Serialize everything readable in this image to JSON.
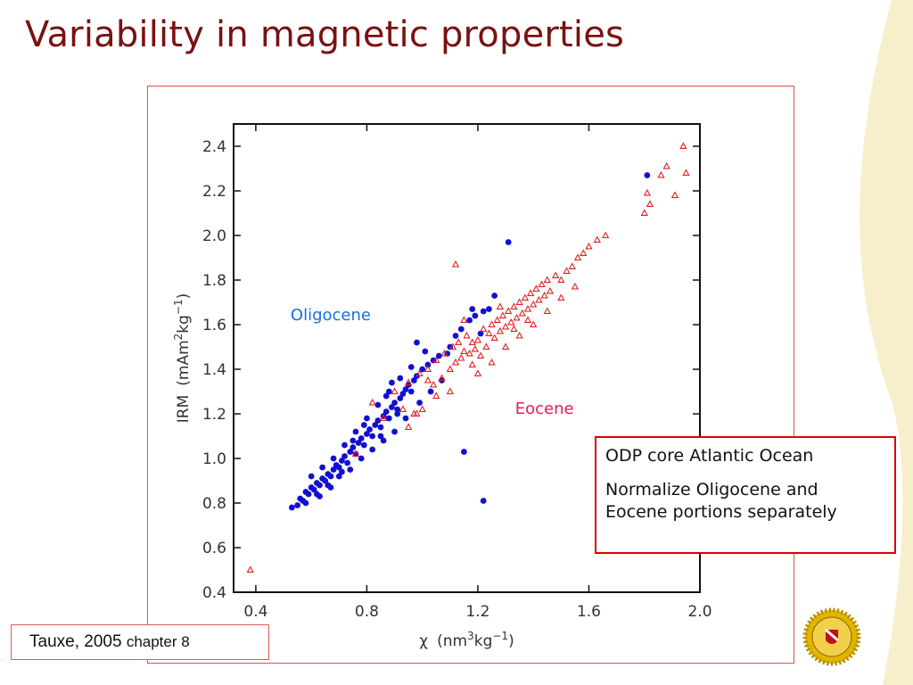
{
  "slide": {
    "title": "Variability in magnetic properties",
    "notes": [
      "ODP core Atlantic Ocean",
      "Normalize Oligocene and Eocene portions separately"
    ],
    "citation": {
      "main": "Tauxe, 2005",
      "detail": "chapter 8"
    },
    "logo": "university-seal-icon",
    "colors": {
      "title": "#7a1111",
      "background_band": "#f7efcc",
      "box_border": "#e00000"
    }
  },
  "chart_data": {
    "type": "scatter",
    "title": "",
    "xlabel_parts": [
      "χ",
      "(nm",
      "3",
      "kg",
      "−1",
      ")"
    ],
    "ylabel_parts": [
      "IRM",
      "(mAm",
      "2",
      "kg",
      "−1",
      ")"
    ],
    "xlim": [
      0.32,
      2.0
    ],
    "ylim": [
      0.4,
      2.5
    ],
    "xticks": [
      "0.4",
      "0.8",
      "1.2",
      "1.6",
      "2.0"
    ],
    "yticks": [
      "0.4",
      "0.6",
      "0.8",
      "1.0",
      "1.2",
      "1.4",
      "1.6",
      "1.8",
      "2.0",
      "2.2",
      "2.4"
    ],
    "grid": false,
    "series": [
      {
        "name": "Oligocene",
        "color": "#1010d0",
        "marker": "circle",
        "points": [
          [
            0.53,
            0.78
          ],
          [
            0.55,
            0.79
          ],
          [
            0.56,
            0.82
          ],
          [
            0.57,
            0.81
          ],
          [
            0.58,
            0.85
          ],
          [
            0.59,
            0.84
          ],
          [
            0.6,
            0.87
          ],
          [
            0.61,
            0.86
          ],
          [
            0.62,
            0.89
          ],
          [
            0.63,
            0.88
          ],
          [
            0.64,
            0.91
          ],
          [
            0.65,
            0.9
          ],
          [
            0.66,
            0.93
          ],
          [
            0.67,
            0.92
          ],
          [
            0.68,
            0.95
          ],
          [
            0.69,
            0.97
          ],
          [
            0.7,
            0.96
          ],
          [
            0.71,
            0.99
          ],
          [
            0.72,
            1.01
          ],
          [
            0.73,
            0.98
          ],
          [
            0.74,
            1.03
          ],
          [
            0.75,
            1.05
          ],
          [
            0.76,
            1.02
          ],
          [
            0.77,
            1.07
          ],
          [
            0.78,
            1.09
          ],
          [
            0.79,
            1.06
          ],
          [
            0.8,
            1.11
          ],
          [
            0.81,
            1.13
          ],
          [
            0.82,
            1.1
          ],
          [
            0.83,
            1.15
          ],
          [
            0.84,
            1.17
          ],
          [
            0.85,
            1.14
          ],
          [
            0.86,
            1.19
          ],
          [
            0.87,
            1.21
          ],
          [
            0.88,
            1.18
          ],
          [
            0.89,
            1.23
          ],
          [
            0.9,
            1.25
          ],
          [
            0.91,
            1.22
          ],
          [
            0.92,
            1.27
          ],
          [
            0.93,
            1.29
          ],
          [
            0.94,
            1.31
          ],
          [
            0.95,
            1.33
          ],
          [
            0.96,
            1.3
          ],
          [
            0.97,
            1.35
          ],
          [
            0.98,
            1.37
          ],
          [
            1.0,
            1.4
          ],
          [
            1.02,
            1.42
          ],
          [
            1.04,
            1.44
          ],
          [
            1.06,
            1.46
          ],
          [
            0.66,
            0.88
          ],
          [
            0.7,
            0.92
          ],
          [
            0.74,
            0.95
          ],
          [
            0.78,
            1.0
          ],
          [
            0.82,
            1.04
          ],
          [
            0.86,
            1.08
          ],
          [
            0.9,
            1.12
          ],
          [
            0.94,
            1.18
          ],
          [
            0.72,
            1.06
          ],
          [
            0.76,
            1.12
          ],
          [
            0.8,
            1.18
          ],
          [
            0.84,
            1.24
          ],
          [
            0.88,
            1.3
          ],
          [
            0.92,
            1.36
          ],
          [
            0.96,
            1.41
          ],
          [
            0.68,
            1.0
          ],
          [
            0.64,
            0.96
          ],
          [
            0.6,
            0.92
          ],
          [
            0.62,
            0.84
          ],
          [
            0.58,
            0.8
          ],
          [
            0.99,
            1.25
          ],
          [
            1.03,
            1.3
          ],
          [
            1.07,
            1.35
          ],
          [
            1.1,
            1.5
          ],
          [
            1.12,
            1.55
          ],
          [
            1.14,
            1.58
          ],
          [
            1.17,
            1.62
          ],
          [
            1.19,
            1.64
          ],
          [
            1.22,
            1.66
          ],
          [
            1.24,
            1.67
          ],
          [
            1.26,
            1.73
          ],
          [
            1.18,
            1.67
          ],
          [
            1.21,
            1.56
          ],
          [
            1.09,
            1.47
          ],
          [
            1.01,
            1.48
          ],
          [
            0.98,
            1.52
          ],
          [
            1.31,
            1.97
          ],
          [
            1.15,
            1.03
          ],
          [
            1.22,
            0.81
          ],
          [
            1.81,
            2.27
          ],
          [
            0.87,
            1.28
          ],
          [
            0.89,
            1.34
          ],
          [
            0.91,
            1.2
          ],
          [
            0.85,
            1.1
          ],
          [
            0.79,
            1.15
          ],
          [
            0.75,
            1.08
          ],
          [
            0.71,
            0.94
          ],
          [
            0.67,
            0.87
          ],
          [
            0.63,
            0.83
          ]
        ]
      },
      {
        "name": "Eocene",
        "color": "#e02020",
        "marker": "triangle",
        "points": [
          [
            0.38,
            0.5
          ],
          [
            0.76,
            1.02
          ],
          [
            0.82,
            1.25
          ],
          [
            0.86,
            1.18
          ],
          [
            0.9,
            1.3
          ],
          [
            0.93,
            1.22
          ],
          [
            0.95,
            1.34
          ],
          [
            0.97,
            1.2
          ],
          [
            0.99,
            1.38
          ],
          [
            1.0,
            1.22
          ],
          [
            1.02,
            1.4
          ],
          [
            1.04,
            1.33
          ],
          [
            1.05,
            1.44
          ],
          [
            1.07,
            1.36
          ],
          [
            1.08,
            1.47
          ],
          [
            1.1,
            1.4
          ],
          [
            1.11,
            1.5
          ],
          [
            1.12,
            1.43
          ],
          [
            1.13,
            1.52
          ],
          [
            1.14,
            1.45
          ],
          [
            1.15,
            1.48
          ],
          [
            1.16,
            1.55
          ],
          [
            1.17,
            1.47
          ],
          [
            1.18,
            1.52
          ],
          [
            1.19,
            1.49
          ],
          [
            1.2,
            1.53
          ],
          [
            1.21,
            1.46
          ],
          [
            1.22,
            1.58
          ],
          [
            1.23,
            1.5
          ],
          [
            1.24,
            1.56
          ],
          [
            1.25,
            1.6
          ],
          [
            1.26,
            1.54
          ],
          [
            1.27,
            1.62
          ],
          [
            1.28,
            1.57
          ],
          [
            1.29,
            1.64
          ],
          [
            1.3,
            1.59
          ],
          [
            1.31,
            1.66
          ],
          [
            1.32,
            1.61
          ],
          [
            1.33,
            1.68
          ],
          [
            1.34,
            1.63
          ],
          [
            1.35,
            1.7
          ],
          [
            1.36,
            1.65
          ],
          [
            1.37,
            1.72
          ],
          [
            1.38,
            1.67
          ],
          [
            1.39,
            1.74
          ],
          [
            1.4,
            1.69
          ],
          [
            1.41,
            1.76
          ],
          [
            1.42,
            1.71
          ],
          [
            1.43,
            1.78
          ],
          [
            1.44,
            1.73
          ],
          [
            1.45,
            1.8
          ],
          [
            1.46,
            1.75
          ],
          [
            1.48,
            1.82
          ],
          [
            1.5,
            1.8
          ],
          [
            1.52,
            1.84
          ],
          [
            1.54,
            1.86
          ],
          [
            1.56,
            1.9
          ],
          [
            1.58,
            1.92
          ],
          [
            1.6,
            1.95
          ],
          [
            1.63,
            1.98
          ],
          [
            1.66,
            2.0
          ],
          [
            1.12,
            1.87
          ],
          [
            1.2,
            1.38
          ],
          [
            1.25,
            1.43
          ],
          [
            1.3,
            1.5
          ],
          [
            1.15,
            1.62
          ],
          [
            1.05,
            1.28
          ],
          [
            0.98,
            1.2
          ],
          [
            0.95,
            1.14
          ],
          [
            1.35,
            1.55
          ],
          [
            1.4,
            1.6
          ],
          [
            1.45,
            1.66
          ],
          [
            1.5,
            1.72
          ],
          [
            1.55,
            1.77
          ],
          [
            1.18,
            1.42
          ],
          [
            1.1,
            1.3
          ],
          [
            1.02,
            1.35
          ],
          [
            1.28,
            1.68
          ],
          [
            1.33,
            1.58
          ],
          [
            1.38,
            1.62
          ],
          [
            1.8,
            2.1
          ],
          [
            1.82,
            2.14
          ],
          [
            1.81,
            2.19
          ],
          [
            1.86,
            2.27
          ],
          [
            1.88,
            2.31
          ],
          [
            1.91,
            2.18
          ],
          [
            1.94,
            2.4
          ],
          [
            1.95,
            2.28
          ]
        ]
      }
    ],
    "annotations": [
      {
        "text": "Oligocene",
        "x": 0.67,
        "y": 1.62,
        "color": "#1a6fe0"
      },
      {
        "text": "Eocene",
        "x": 1.44,
        "y": 1.2,
        "color": "#e02050"
      }
    ]
  }
}
